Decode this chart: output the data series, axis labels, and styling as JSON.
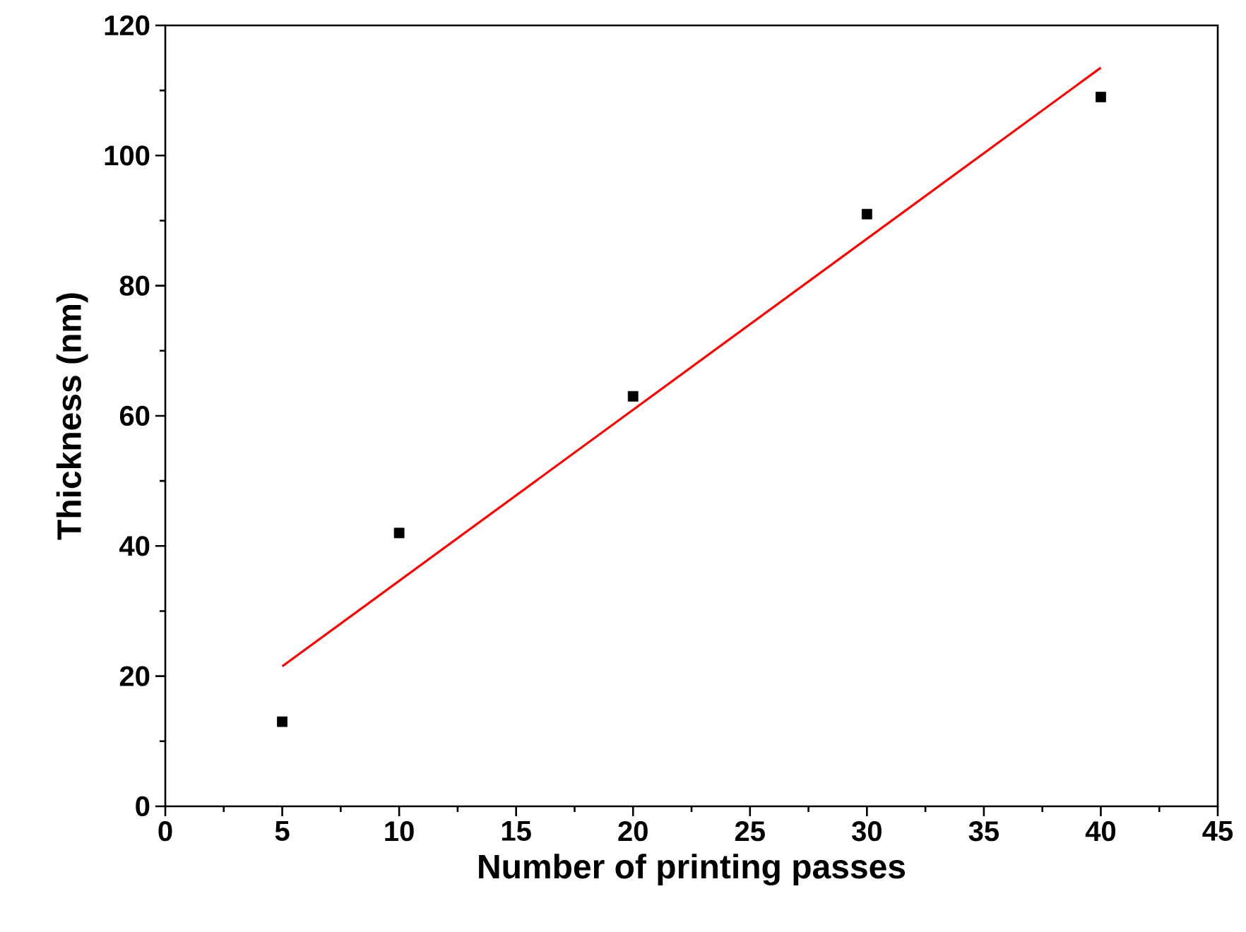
{
  "chart_data": {
    "type": "scatter",
    "xlabel": "Number of printing passes",
    "ylabel": "Thickness (nm)",
    "xlim": [
      0,
      45
    ],
    "xticks": [
      0,
      5,
      10,
      15,
      20,
      25,
      30,
      35,
      40,
      45
    ],
    "ylim": [
      0,
      120
    ],
    "yticks": [
      0,
      20,
      40,
      60,
      80,
      100,
      120
    ],
    "x": [
      5,
      10,
      20,
      30,
      40
    ],
    "series": [
      {
        "color": "#000000",
        "marker": "square",
        "values": [
          13,
          42,
          63,
          91,
          109
        ]
      },
      {
        "type": "line",
        "color": "#ff0000",
        "marker": "none",
        "line_style": "solid",
        "x": [
          5,
          40
        ],
        "values": [
          21.5,
          113.5
        ]
      }
    ]
  }
}
